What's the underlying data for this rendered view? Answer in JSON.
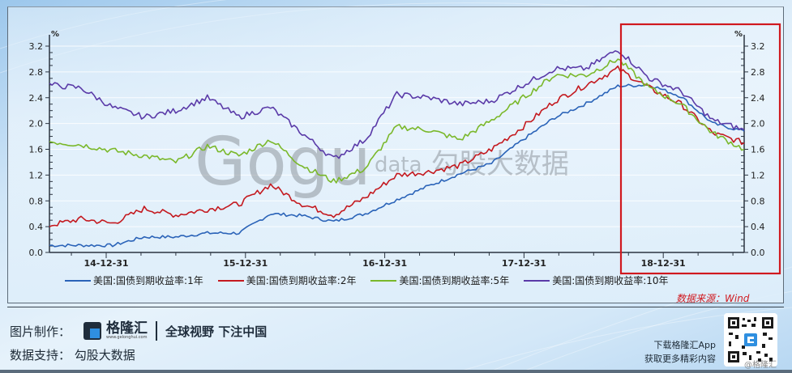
{
  "chart_data": {
    "type": "line",
    "title": "",
    "xlabel": "",
    "ylabel": "%",
    "ylabel_right": "%",
    "ylim": [
      0.0,
      3.2
    ],
    "yticks": [
      "0.0",
      "0.4",
      "0.8",
      "1.2",
      "1.6",
      "2.0",
      "2.4",
      "2.8",
      "3.2"
    ],
    "x_tick_labels": [
      "14-12-31",
      "15-12-31",
      "16-12-31",
      "17-12-31",
      "18-12-31"
    ],
    "grid": true,
    "legend_position": "bottom",
    "x": [
      "2014-04",
      "2014-07",
      "2014-10",
      "2015-01",
      "2015-04",
      "2015-07",
      "2015-10",
      "2016-01",
      "2016-04",
      "2016-07",
      "2016-10",
      "2017-01",
      "2017-04",
      "2017-07",
      "2017-10",
      "2018-01",
      "2018-04",
      "2018-07",
      "2018-10",
      "2019-01",
      "2019-04",
      "2019-07",
      "2019-09"
    ],
    "series": [
      {
        "name": "美国:国债到期收益率:1年",
        "color": "#2a63b8",
        "values": [
          0.11,
          0.11,
          0.11,
          0.24,
          0.24,
          0.3,
          0.3,
          0.6,
          0.57,
          0.48,
          0.6,
          0.82,
          1.03,
          1.22,
          1.38,
          1.75,
          2.09,
          2.31,
          2.58,
          2.6,
          2.42,
          2.0,
          1.88
        ]
      },
      {
        "name": "美国:国债到期收益率:2年",
        "color": "#c4191f",
        "values": [
          0.42,
          0.52,
          0.45,
          0.68,
          0.58,
          0.67,
          0.75,
          1.05,
          0.75,
          0.58,
          0.85,
          1.2,
          1.25,
          1.35,
          1.6,
          1.95,
          2.35,
          2.6,
          2.85,
          2.55,
          2.3,
          1.85,
          1.7
        ]
      },
      {
        "name": "美国:国债到期收益率:5年",
        "color": "#7ab82a",
        "values": [
          1.72,
          1.67,
          1.58,
          1.5,
          1.4,
          1.65,
          1.5,
          1.75,
          1.35,
          1.1,
          1.3,
          1.95,
          1.9,
          1.75,
          2.05,
          2.4,
          2.75,
          2.75,
          3.0,
          2.55,
          2.3,
          1.85,
          1.6
        ]
      },
      {
        "name": "美国:国债到期收益率:10年",
        "color": "#5a3aa8",
        "values": [
          2.6,
          2.55,
          2.25,
          2.1,
          2.2,
          2.4,
          2.1,
          2.25,
          1.85,
          1.45,
          1.75,
          2.45,
          2.4,
          2.3,
          2.35,
          2.6,
          2.85,
          2.85,
          3.15,
          2.7,
          2.5,
          2.05,
          1.9
        ]
      }
    ],
    "highlight_box": {
      "from": "2018-10",
      "to": "2019-09",
      "color": "#d0191f"
    }
  },
  "legend": [
    {
      "label": "美国:国债到期收益率:1年",
      "color": "#2a63b8"
    },
    {
      "label": "美国:国债到期收益率:2年",
      "color": "#c4191f"
    },
    {
      "label": "美国:国债到期收益率:5年",
      "color": "#7ab82a"
    },
    {
      "label": "美国:国债到期收益率:10年",
      "color": "#5a3aa8"
    }
  ],
  "source": "数据来源：Wind",
  "watermark": {
    "latin": "Gogu",
    "data": "data",
    "cn": "勾股大数据"
  },
  "footer": {
    "made_by_label": "图片制作：",
    "brand": "格隆汇",
    "brand_url": "www.gelonghui.com",
    "slogan": "全球视野 下注中国",
    "data_support": "数据支持：  勾股大数据",
    "app_line1": "下载格隆汇App",
    "app_line2": "获取更多精彩内容",
    "qr_watermark": "@格隆汇"
  }
}
